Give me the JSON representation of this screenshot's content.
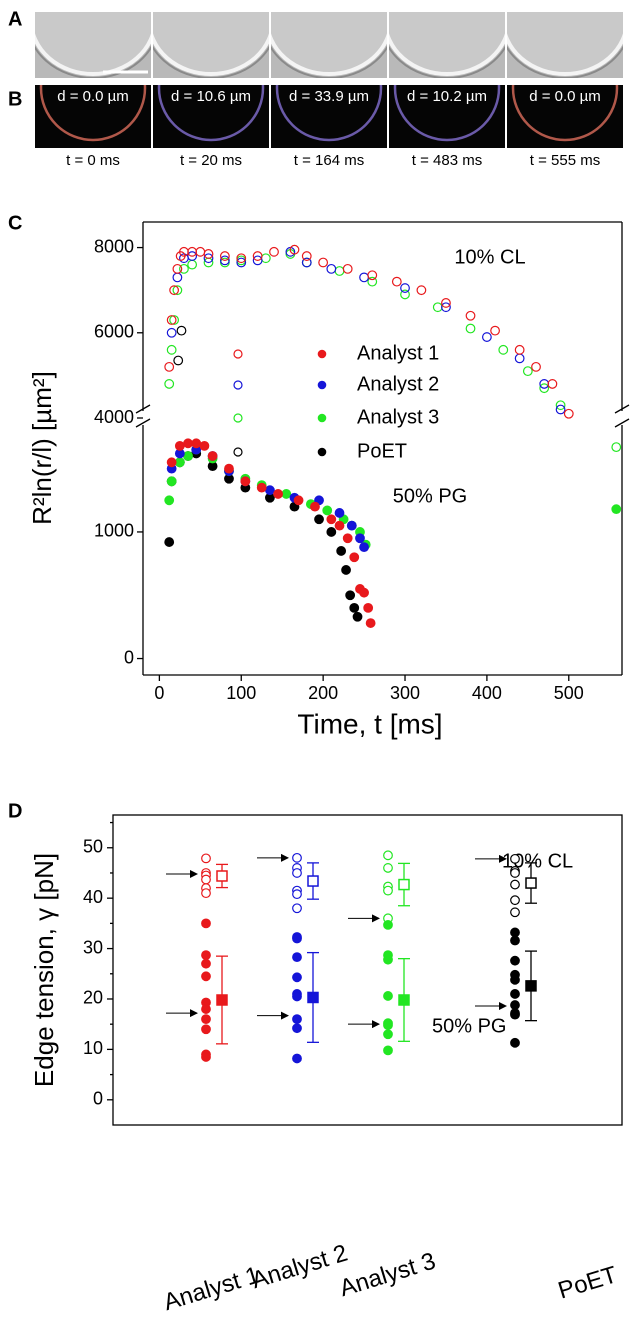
{
  "panel_labels": [
    "A",
    "B",
    "C",
    "D"
  ],
  "frames": [
    {
      "d": "d = 0.0 µm",
      "t": "t = 0 ms"
    },
    {
      "d": "d = 10.6 µm",
      "t": "t = 20 ms"
    },
    {
      "d": "d = 33.9 µm",
      "t": "t = 164 ms"
    },
    {
      "d": "d = 10.2 µm",
      "t": "t = 483 ms"
    },
    {
      "d": "d = 0.0 µm",
      "t": "t = 555 ms"
    }
  ],
  "chart_data": [
    {
      "type": "scatter",
      "x_label": "Time, t [ms]",
      "y_label": "R²ln(r/l) [µm²]",
      "annotations": [
        "10% CL",
        "50% PG"
      ],
      "xlim": [
        -20,
        565
      ],
      "xticks": [
        0,
        100,
        200,
        300,
        400,
        500
      ],
      "segments": [
        {
          "ylim": [
            -130,
            1900
          ],
          "yticks": [
            0,
            1000
          ]
        },
        {
          "ylim": [
            4000,
            8600
          ],
          "yticks": [
            4000,
            6000,
            8000
          ]
        }
      ],
      "series": [
        {
          "name": "Analyst 1",
          "color": "#e8191c",
          "cl": {
            "x": [
              12,
              15,
              18,
              22,
              26,
              30,
              40,
              50,
              60,
              80,
              100,
              120,
              140,
              165,
              180,
              200,
              230,
              260,
              290,
              320,
              350,
              380,
              410,
              440,
              460,
              480,
              500
            ],
            "values": [
              5200,
              6300,
              7000,
              7500,
              7800,
              7900,
              7900,
              7900,
              7850,
              7800,
              7750,
              7800,
              7900,
              7950,
              7800,
              7650,
              7500,
              7350,
              7200,
              7000,
              6700,
              6400,
              6050,
              5600,
              5200,
              4800,
              4100
            ]
          },
          "pg": {
            "x": [
              15,
              25,
              35,
              45,
              55,
              65,
              85,
              105,
              125,
              145,
              170,
              190,
              210,
              220,
              230,
              238,
              245,
              250,
              255,
              258
            ],
            "values": [
              1550,
              1680,
              1700,
              1700,
              1680,
              1600,
              1500,
              1400,
              1350,
              1300,
              1250,
              1200,
              1100,
              1050,
              950,
              800,
              550,
              520,
              400,
              280
            ]
          }
        },
        {
          "name": "Analyst 2",
          "color": "#1515d8",
          "cl": {
            "x": [
              15,
              22,
              30,
              40,
              60,
              80,
              100,
              120,
              160,
              180,
              210,
              250,
              300,
              350,
              400,
              440,
              470,
              490
            ],
            "values": [
              6000,
              7300,
              7750,
              7800,
              7750,
              7700,
              7650,
              7700,
              7900,
              7650,
              7500,
              7300,
              7050,
              6600,
              5900,
              5400,
              4800,
              4200
            ]
          },
          "pg": {
            "x": [
              15,
              25,
              45,
              65,
              85,
              105,
              135,
              165,
              195,
              220,
              235,
              245,
              250
            ],
            "values": [
              1500,
              1620,
              1650,
              1600,
              1480,
              1400,
              1330,
              1270,
              1250,
              1150,
              1050,
              950,
              880
            ]
          }
        },
        {
          "name": "Analyst 3",
          "color": "#22e622",
          "cl": {
            "x": [
              12,
              15,
              18,
              22,
              30,
              40,
              60,
              80,
              100,
              130,
              160,
              180,
              220,
              260,
              300,
              340,
              380,
              420,
              450,
              470,
              490,
              558
            ],
            "values": [
              4800,
              5600,
              6300,
              7000,
              7500,
              7600,
              7650,
              7650,
              7700,
              7750,
              7850,
              7650,
              7450,
              7200,
              6900,
              6600,
              6100,
              5600,
              5100,
              4700,
              4300,
              1670
            ]
          },
          "pg": {
            "x": [
              12,
              15,
              25,
              35,
              45,
              65,
              85,
              105,
              125,
              155,
              185,
              205,
              225,
              235,
              245,
              252,
              558
            ],
            "values": [
              1250,
              1400,
              1550,
              1600,
              1650,
              1580,
              1480,
              1420,
              1370,
              1300,
              1220,
              1170,
              1100,
              1050,
              1000,
              900,
              1180
            ]
          }
        },
        {
          "name": "PoET",
          "color": "#000000",
          "cl": {
            "x": [
              23,
              27
            ],
            "values": [
              5350,
              6050
            ]
          },
          "pg": {
            "x": [
              12,
              15,
              25,
              35,
              45,
              65,
              85,
              105,
              135,
              165,
              195,
              210,
              222,
              228,
              233,
              238,
              242
            ],
            "values": [
              920,
              1400,
              1550,
              1600,
              1620,
              1520,
              1420,
              1350,
              1270,
              1200,
              1100,
              1000,
              850,
              700,
              500,
              400,
              330
            ]
          }
        }
      ]
    },
    {
      "type": "strip",
      "y_label": "Edge tension, γ [pN]",
      "annotations": [
        "10% CL",
        "50% PG"
      ],
      "categories": [
        "Analyst 1",
        "Analyst 2",
        "Analyst 3",
        "PoET"
      ],
      "ylim": [
        -5,
        56.5
      ],
      "yticks": [
        0,
        10,
        20,
        30,
        40,
        50
      ],
      "minor_yticks": [
        5,
        15,
        25,
        35,
        45,
        55
      ],
      "groups": [
        {
          "color": "#e8191c",
          "cl": [
            47.9,
            45.0,
            44.5,
            43.7,
            42.0,
            41.0
          ],
          "pg": [
            35.0,
            28.7,
            27.0,
            24.5,
            19.3,
            18.0,
            16.0,
            14.0,
            9.0,
            8.5
          ],
          "cl_mean": 44.4,
          "cl_err": 2.3,
          "pg_mean": 19.8,
          "pg_err": 8.7,
          "arrows": [
            44.8,
            17.2
          ]
        },
        {
          "color": "#1515d8",
          "cl": [
            48.0,
            46.0,
            45.0,
            41.5,
            40.8,
            38.0
          ],
          "pg": [
            32.3,
            32.0,
            28.3,
            24.3,
            21.0,
            20.5,
            16.0,
            14.2,
            8.2
          ],
          "cl_mean": 43.4,
          "cl_err": 3.6,
          "pg_mean": 20.3,
          "pg_err": 8.9,
          "arrows": [
            48.0,
            16.7
          ]
        },
        {
          "color": "#22e622",
          "cl": [
            48.5,
            46.0,
            42.3,
            41.5,
            36.0
          ],
          "pg": [
            34.7,
            28.7,
            27.8,
            20.6,
            15.2,
            14.8,
            13.0,
            9.8
          ],
          "cl_mean": 42.7,
          "cl_err": 4.2,
          "pg_mean": 19.8,
          "pg_err": 8.2,
          "arrows": [
            36.0,
            15.0
          ]
        },
        {
          "color": "#000000",
          "cl": [
            47.8,
            45.4,
            45.0,
            42.7,
            39.6,
            37.2
          ],
          "pg": [
            33.2,
            31.6,
            27.6,
            24.8,
            23.8,
            21.0,
            18.8,
            17.2,
            16.9,
            11.3
          ],
          "cl_mean": 43.0,
          "cl_err": 4.0,
          "pg_mean": 22.6,
          "pg_err": 6.9,
          "arrows": [
            47.8,
            18.6
          ]
        }
      ]
    }
  ]
}
